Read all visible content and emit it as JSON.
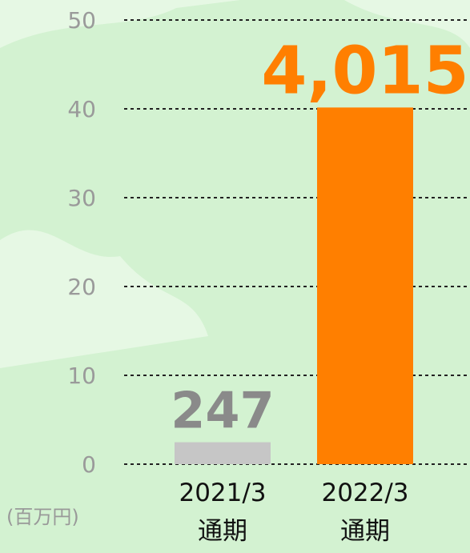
{
  "chart_data": {
    "type": "bar",
    "categories": [
      "2021/3\n通期",
      "2022/3\n通期"
    ],
    "values": [
      2.47,
      40.15
    ],
    "value_labels": [
      "247",
      "4,015"
    ],
    "colors": [
      "#c6c6c6",
      "#ff7f00"
    ],
    "label_colors": [
      "#8a8a8a",
      "#ff7f00"
    ],
    "unit": "(百万円)",
    "ylim": [
      0,
      50
    ],
    "yticks": [
      0,
      10,
      20,
      30,
      40,
      50
    ],
    "grid": true
  }
}
